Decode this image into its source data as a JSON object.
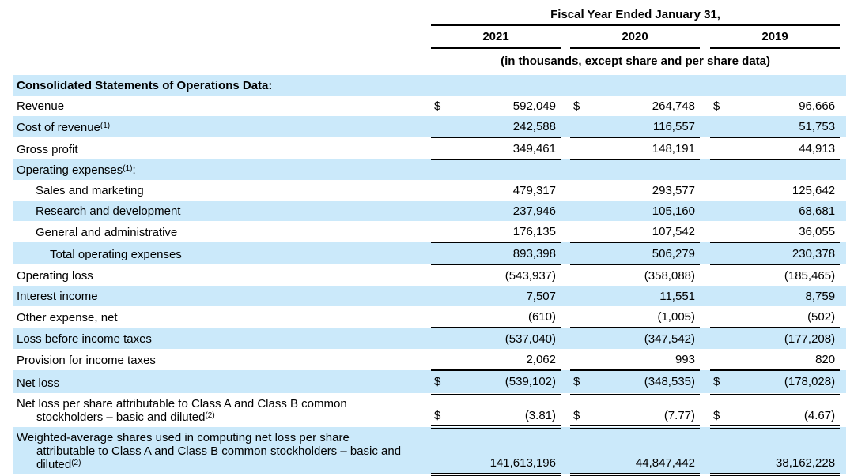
{
  "header": {
    "period_title": "Fiscal Year Ended January 31,",
    "years": [
      "2021",
      "2020",
      "2019"
    ],
    "note": "(in thousands, except share and per share data)"
  },
  "section_title": "Consolidated Statements of Operations Data:",
  "colors": {
    "row_stripe": "#cbe9fa",
    "rule": "#000000",
    "text": "#000000"
  },
  "rows": [
    {
      "label": "Revenue",
      "dollar": "$",
      "values": [
        "592,049",
        "264,748",
        "96,666"
      ]
    },
    {
      "label": "Cost of revenue",
      "sup": "(1)",
      "values": [
        "242,588",
        "116,557",
        "51,753"
      ]
    },
    {
      "label": "Gross profit",
      "values": [
        "349,461",
        "148,191",
        "44,913"
      ]
    },
    {
      "label": "Operating expenses",
      "sup": "(1)",
      "suffix": ":",
      "values": [
        "",
        "",
        ""
      ]
    },
    {
      "label": "Sales and marketing",
      "values": [
        "479,317",
        "293,577",
        "125,642"
      ]
    },
    {
      "label": "Research and development",
      "values": [
        "237,946",
        "105,160",
        "68,681"
      ]
    },
    {
      "label": "General and administrative",
      "values": [
        "176,135",
        "107,542",
        "36,055"
      ]
    },
    {
      "label": "Total operating expenses",
      "values": [
        "893,398",
        "506,279",
        "230,378"
      ]
    },
    {
      "label": "Operating loss",
      "values": [
        "(543,937)",
        "(358,088)",
        "(185,465)"
      ]
    },
    {
      "label": "Interest income",
      "values": [
        "7,507",
        "11,551",
        "8,759"
      ]
    },
    {
      "label": "Other expense, net",
      "values": [
        "(610)",
        "(1,005)",
        "(502)"
      ]
    },
    {
      "label": "Loss before income taxes",
      "values": [
        "(537,040)",
        "(347,542)",
        "(177,208)"
      ]
    },
    {
      "label": "Provision for income taxes",
      "values": [
        "2,062",
        "993",
        "820"
      ]
    },
    {
      "label": "Net loss",
      "dollar": "$",
      "values": [
        "(539,102)",
        "(348,535)",
        "(178,028)"
      ]
    },
    {
      "label": "Net loss per share attributable to Class A and Class B common stockholders – basic and diluted",
      "sup": "(2)",
      "dollar": "$",
      "values": [
        "(3.81)",
        "(7.77)",
        "(4.67)"
      ]
    },
    {
      "label": "Weighted-average shares used in computing net loss per share attributable to Class A and Class B common stockholders – basic and diluted",
      "sup": "(2)",
      "values": [
        "141,613,196",
        "44,847,442",
        "38,162,228"
      ]
    }
  ]
}
